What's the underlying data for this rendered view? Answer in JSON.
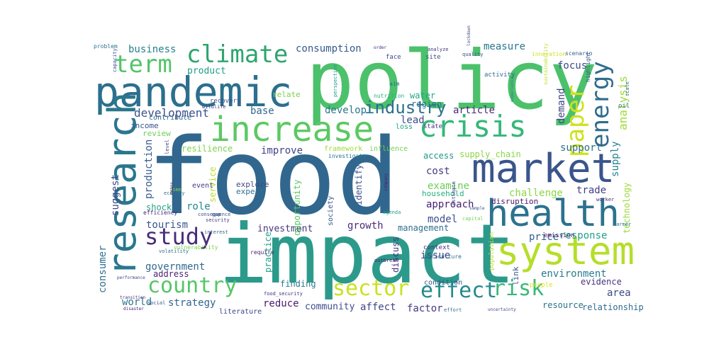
{
  "words": [
    {
      "id": "food",
      "text": "food",
      "color": "#31678e"
    },
    {
      "id": "impact",
      "text": "impact",
      "color": "#2c9a8b"
    },
    {
      "id": "policy",
      "text": "policy",
      "color": "#4cc16b"
    },
    {
      "id": "pandemic",
      "text": "pandemic",
      "color": "#2c6f8e"
    },
    {
      "id": "market",
      "text": "market",
      "color": "#3a558c"
    },
    {
      "id": "health",
      "text": "health",
      "color": "#2c728e"
    },
    {
      "id": "system",
      "text": "system",
      "color": "#b5de2b"
    },
    {
      "id": "research",
      "text": "research",
      "color": "#2a778e"
    },
    {
      "id": "increase",
      "text": "increase",
      "color": "#5cc863"
    },
    {
      "id": "crisis",
      "text": "crisis",
      "color": "#35b779"
    },
    {
      "id": "climate",
      "text": "climate",
      "color": "#2da56e"
    },
    {
      "id": "term",
      "text": "term",
      "color": "#52c569"
    },
    {
      "id": "energy",
      "text": "energy",
      "color": "#2f6c8e"
    },
    {
      "id": "paper",
      "text": "paper",
      "color": "#d0e11c"
    },
    {
      "id": "study",
      "text": "study",
      "color": "#472d7b"
    },
    {
      "id": "country",
      "text": "country",
      "color": "#56c667"
    },
    {
      "id": "sector",
      "text": "sector",
      "color": "#cae11f"
    },
    {
      "id": "effect",
      "text": "effect",
      "color": "#238a8d"
    },
    {
      "id": "risk",
      "text": "risk",
      "color": "#3ab77a"
    },
    {
      "id": "industry",
      "text": "industry",
      "color": "#2d708e"
    },
    {
      "id": "analysis",
      "text": "analysis",
      "color": "#9fda3a"
    },
    {
      "id": "development",
      "text": "development",
      "color": "#3b528b"
    },
    {
      "id": "business",
      "text": "business",
      "color": "#277f8e"
    },
    {
      "id": "product",
      "text": "product",
      "color": "#1f9e89"
    },
    {
      "id": "consumption",
      "text": "consumption",
      "color": "#38598c"
    },
    {
      "id": "measure",
      "text": "measure",
      "color": "#2a788e"
    },
    {
      "id": "focus",
      "text": "focus",
      "color": "#3e4989"
    },
    {
      "id": "demand",
      "text": "demand",
      "color": "#414487"
    },
    {
      "id": "support",
      "text": "support",
      "color": "#2e6f8e"
    },
    {
      "id": "supply",
      "text": "supply",
      "color": "#25848e"
    },
    {
      "id": "trade",
      "text": "trade",
      "color": "#433e85"
    },
    {
      "id": "develop",
      "text": "develop",
      "color": "#2a778e"
    },
    {
      "id": "article",
      "text": "article",
      "color": "#482878"
    },
    {
      "id": "base",
      "text": "base",
      "color": "#31688e"
    },
    {
      "id": "lead",
      "text": "lead",
      "color": "#3e4c8a"
    },
    {
      "id": "production",
      "text": "production",
      "color": "#365d8d"
    },
    {
      "id": "challenge",
      "text": "challenge",
      "color": "#8bd646"
    },
    {
      "id": "approach",
      "text": "approach",
      "color": "#482173"
    },
    {
      "id": "cost",
      "text": "cost",
      "color": "#443b84"
    },
    {
      "id": "examine",
      "text": "examine",
      "color": "#6ccd5a"
    },
    {
      "id": "model",
      "text": "model",
      "color": "#3d4e8a"
    },
    {
      "id": "role",
      "text": "role",
      "color": "#25858e"
    },
    {
      "id": "tourism",
      "text": "tourism",
      "color": "#39568c"
    },
    {
      "id": "investment",
      "text": "investment",
      "color": "#453581"
    },
    {
      "id": "growth",
      "text": "growth",
      "color": "#472c7a"
    },
    {
      "id": "price",
      "text": "price",
      "color": "#34618d"
    },
    {
      "id": "response",
      "text": "response",
      "color": "#1fa088"
    },
    {
      "id": "government",
      "text": "government",
      "color": "#30698e"
    },
    {
      "id": "address",
      "text": "address",
      "color": "#481f70"
    },
    {
      "id": "issue",
      "text": "issue",
      "color": "#404688"
    },
    {
      "id": "world",
      "text": "world",
      "color": "#2b758e"
    },
    {
      "id": "strategy",
      "text": "strategy",
      "color": "#32648e"
    },
    {
      "id": "reduce",
      "text": "reduce",
      "color": "#481a6c"
    },
    {
      "id": "affect",
      "text": "affect",
      "color": "#3f4788"
    },
    {
      "id": "factor",
      "text": "factor",
      "color": "#443983"
    },
    {
      "id": "community",
      "text": "community",
      "color": "#3d4d8a"
    },
    {
      "id": "environment",
      "text": "environment",
      "color": "#287c8e"
    },
    {
      "id": "evidence",
      "text": "evidence",
      "color": "#46327e"
    },
    {
      "id": "area",
      "text": "area",
      "color": "#3e4a89"
    },
    {
      "id": "resource",
      "text": "resource",
      "color": "#2c728e"
    },
    {
      "id": "relationship",
      "text": "relationship",
      "color": "#2f6b8e"
    },
    {
      "id": "consumer",
      "text": "consumer",
      "color": "#2d718e"
    },
    {
      "id": "suggest",
      "text": "suggest",
      "color": "#3f4889"
    },
    {
      "id": "income",
      "text": "income",
      "color": "#3a548c"
    },
    {
      "id": "review",
      "text": "review",
      "color": "#6ece58"
    },
    {
      "id": "resilience",
      "text": "resilience",
      "color": "#7fd34e"
    },
    {
      "id": "improve",
      "text": "improve",
      "color": "#414487"
    },
    {
      "id": "access",
      "text": "access",
      "color": "#1f968b"
    },
    {
      "id": "supply_chain",
      "text": "supply_chain",
      "color": "#8bd646"
    },
    {
      "id": "household",
      "text": "household",
      "color": "#29af7f"
    },
    {
      "id": "management",
      "text": "management",
      "color": "#2e6e8e"
    },
    {
      "id": "technology",
      "text": "technology",
      "color": "#9dd93b"
    },
    {
      "id": "shock",
      "text": "shock",
      "color": "#20a386"
    },
    {
      "id": "service",
      "text": "service",
      "color": "#b8de29"
    },
    {
      "id": "opportunity",
      "text": "opportunity",
      "color": "#5ac864"
    },
    {
      "id": "identify",
      "text": "identify",
      "color": "#3b528b"
    },
    {
      "id": "explore",
      "text": "explore",
      "color": "#3e4989"
    },
    {
      "id": "expect",
      "text": "expect",
      "color": "#2c738e"
    },
    {
      "id": "event",
      "text": "event",
      "color": "#443a83"
    },
    {
      "id": "disruption",
      "text": "disruption",
      "color": "#48186a"
    },
    {
      "id": "emission",
      "text": "emission",
      "color": "#481467"
    },
    {
      "id": "water",
      "text": "water",
      "color": "#22a884"
    },
    {
      "id": "region",
      "text": "region",
      "color": "#2a768e"
    },
    {
      "id": "relate",
      "text": "relate",
      "color": "#7ad151"
    },
    {
      "id": "contribute",
      "text": "contribute",
      "color": "#31688e"
    },
    {
      "id": "finding",
      "text": "finding",
      "color": "#2a788e"
    },
    {
      "id": "practice",
      "text": "practice",
      "color": "#1fa088"
    },
    {
      "id": "discuss",
      "text": "discuss",
      "color": "#463480"
    },
    {
      "id": "link",
      "text": "link",
      "color": "#3b528b"
    },
    {
      "id": "condition",
      "text": "condition",
      "color": "#39568c"
    },
    {
      "id": "literature",
      "text": "literature",
      "color": "#404588"
    },
    {
      "id": "efficiency",
      "text": "efficiency",
      "color": "#482576"
    },
    {
      "id": "problem",
      "text": "problem",
      "color": "#2b748e"
    },
    {
      "id": "innovation",
      "text": "innovation",
      "color": "#d2e21b"
    },
    {
      "id": "scenario",
      "text": "scenario",
      "color": "#365c8d"
    },
    {
      "id": "activity",
      "text": "activity",
      "color": "#2f6b8e"
    },
    {
      "id": "capacity",
      "text": "capacity",
      "color": "#3c508b"
    },
    {
      "id": "recovery",
      "text": "recovery",
      "color": "#3a548c"
    },
    {
      "id": "state",
      "text": "state",
      "color": "#46327e"
    },
    {
      "id": "loss",
      "text": "loss",
      "color": "#20a486"
    },
    {
      "id": "society",
      "text": "society",
      "color": "#39558c"
    },
    {
      "id": "context",
      "text": "context",
      "color": "#472f7d"
    },
    {
      "id": "population",
      "text": "population",
      "color": "#b2dd2d"
    },
    {
      "id": "agriculture",
      "text": "agriculture",
      "color": "#2e6d8e"
    },
    {
      "id": "people",
      "text": "people",
      "color": "#dde318"
    },
    {
      "id": "framework",
      "text": "framework",
      "color": "#a0da39"
    },
    {
      "id": "influence",
      "text": "influence",
      "color": "#75d054"
    },
    {
      "id": "investigate",
      "text": "investigate",
      "color": "#2a788e"
    },
    {
      "id": "perspective",
      "text": "perspective",
      "color": "#1e9b8a"
    },
    {
      "id": "nutrition",
      "text": "nutrition",
      "color": "#29af7f"
    },
    {
      "id": "order",
      "text": "order",
      "color": "#482677"
    },
    {
      "id": "face",
      "text": "face",
      "color": "#3e4989"
    },
    {
      "id": "site",
      "text": "site",
      "color": "#3d4e8a"
    },
    {
      "id": "aim",
      "text": "aim",
      "color": "#2f6c8e"
    },
    {
      "id": "analyze",
      "text": "analyze",
      "color": "#443983"
    },
    {
      "id": "quality",
      "text": "quality",
      "color": "#3c4f8a"
    },
    {
      "id": "wildlife",
      "text": "wildlife",
      "color": "#433e85"
    },
    {
      "id": "company",
      "text": "company",
      "color": "#482374"
    },
    {
      "id": "outbreak",
      "text": "outbreak",
      "color": "#481b6d"
    },
    {
      "id": "volatility",
      "text": "volatility",
      "color": "#2d708e"
    },
    {
      "id": "food_security",
      "text": "food_security",
      "color": "#46337f"
    },
    {
      "id": "performance",
      "text": "performance",
      "color": "#3f4788"
    },
    {
      "id": "disaster",
      "text": "disaster",
      "color": "#482071"
    },
    {
      "id": "transition",
      "text": "transition",
      "color": "#46307e"
    },
    {
      "id": "worker",
      "text": "worker",
      "color": "#482677"
    },
    {
      "id": "scale",
      "text": "scale",
      "color": "#31688e"
    },
    {
      "id": "sustainability",
      "text": "sustainability",
      "color": "#bade28"
    },
    {
      "id": "highlight",
      "text": "highlight",
      "color": "#355f8d"
    },
    {
      "id": "oil",
      "text": "oil",
      "color": "#2c728e"
    },
    {
      "id": "capital",
      "text": "capital",
      "color": "#73d056"
    },
    {
      "id": "level",
      "text": "level",
      "color": "#3f4788"
    },
    {
      "id": "time",
      "text": "time",
      "color": "#89d548"
    },
    {
      "id": "gap",
      "text": "gap",
      "color": "#39568c"
    },
    {
      "id": "experience",
      "text": "experience",
      "color": "#2a788e"
    },
    {
      "id": "consequence",
      "text": "consequence",
      "color": "#3b528b"
    },
    {
      "id": "economy",
      "text": "economy",
      "color": "#2d708e"
    },
    {
      "id": "security",
      "text": "security",
      "color": "#443983"
    },
    {
      "id": "interest",
      "text": "interest",
      "color": "#31688e"
    },
    {
      "id": "vulnerability",
      "text": "vulnerability",
      "color": "#7ad151"
    },
    {
      "id": "uncertainty",
      "text": "uncertainty",
      "color": "#3e4a89"
    },
    {
      "id": "require",
      "text": "require",
      "color": "#481f70"
    },
    {
      "id": "social",
      "text": "social",
      "color": "#39568c"
    },
    {
      "id": "effort",
      "text": "effort",
      "color": "#2e6e8e"
    },
    {
      "id": "sample",
      "text": "sample",
      "color": "#3b528b"
    },
    {
      "id": "estimate",
      "text": "estimate",
      "color": "#3f4788"
    },
    {
      "id": "agenda",
      "text": "agenda",
      "color": "#1fa088"
    },
    {
      "id": "farmer",
      "text": "farmer",
      "color": "#2a788e"
    },
    {
      "id": "lockdown",
      "text": "lockdown",
      "color": "#3e4989"
    },
    {
      "id": "means",
      "text": "means",
      "color": "#482878"
    }
  ]
}
